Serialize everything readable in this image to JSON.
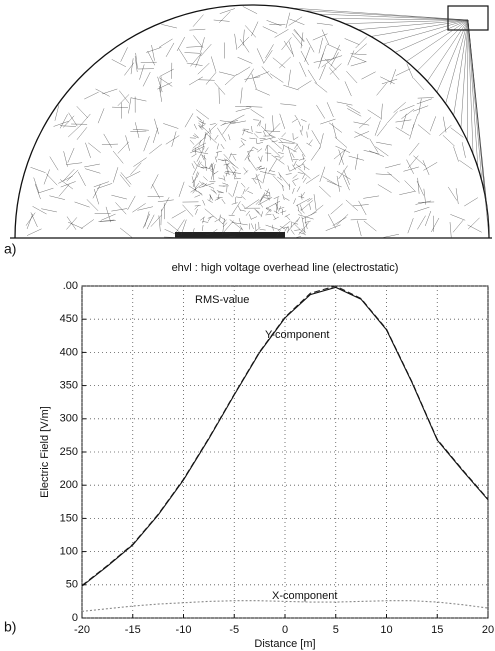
{
  "panel_labels": [
    "a)",
    "b)"
  ],
  "chart_data": {
    "type": "line",
    "title": "ehvl : high voltage overhead line (electrostatic)",
    "x_label": "Distance [m]",
    "y_label": "Electric Field [V/m]",
    "x": [
      -20,
      -17.5,
      -15,
      -12.5,
      -10,
      -7.5,
      -5,
      -2.5,
      0,
      2.5,
      5,
      7.5,
      10,
      12.5,
      15,
      17.5,
      20
    ],
    "series": [
      {
        "name": "RMS-value",
        "color": "#222222",
        "dash": "6,3",
        "values": [
          49,
          79,
          111,
          156,
          209,
          271,
          337,
          401,
          453,
          489,
          500,
          481,
          435,
          356,
          269,
          223,
          179
        ]
      },
      {
        "name": "Y-component",
        "color": "#111111",
        "dash": "none",
        "values": [
          48,
          78,
          110,
          155,
          208,
          270,
          336,
          400,
          452,
          487,
          498,
          480,
          434,
          355,
          268,
          222,
          178
        ]
      },
      {
        "name": "X-component",
        "color": "#888888",
        "dash": "2,2",
        "values": [
          10,
          14,
          18,
          21,
          23,
          25,
          26,
          26,
          25,
          24,
          24,
          25,
          26,
          26,
          24,
          20,
          15
        ]
      }
    ],
    "xlim": [
      -20,
      20
    ],
    "xticks": [
      -20,
      -15,
      -10,
      -5,
      0,
      5,
      10,
      15,
      20
    ],
    "ylim": [
      0,
      500
    ],
    "yticks": [
      0,
      50,
      100,
      150,
      200,
      250,
      300,
      350,
      400,
      450,
      {
        "value": 500,
        "label": ".00"
      }
    ],
    "grid": true
  }
}
